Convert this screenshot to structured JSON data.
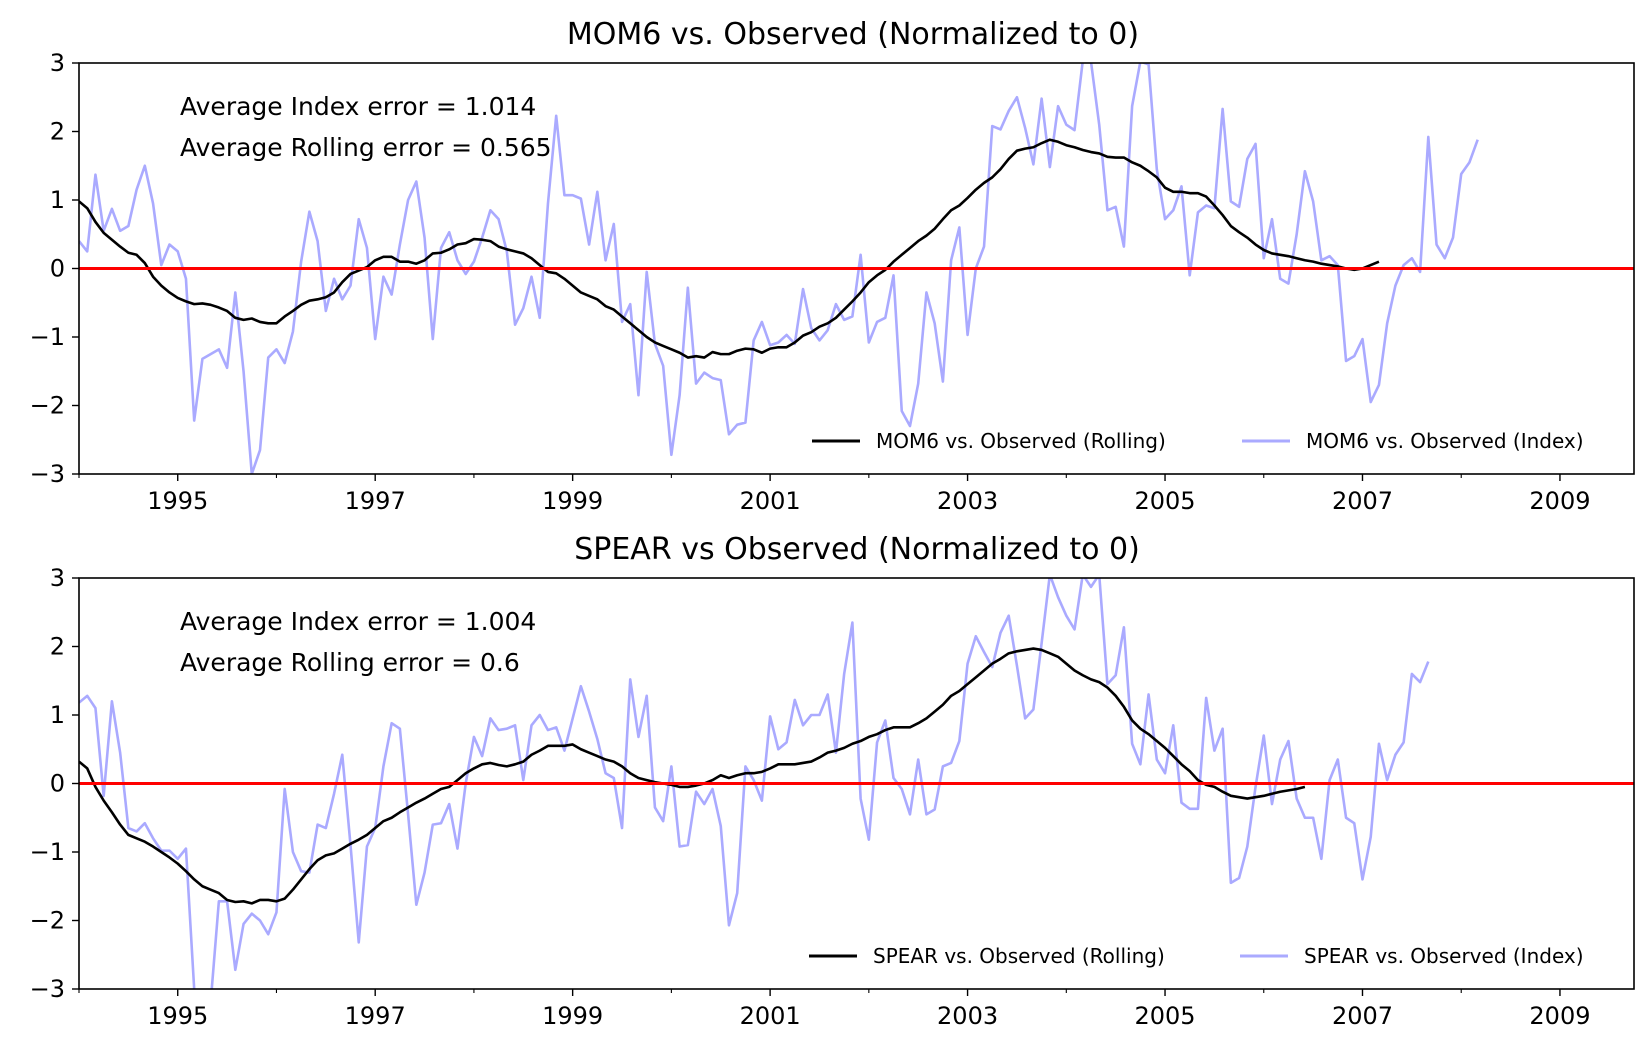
{
  "chart_data": [
    {
      "type": "line",
      "title": "MOM6 vs. Observed (Normalized to 0)",
      "xlabel": "",
      "ylabel": "",
      "xlim": [
        1994.0,
        2009.75
      ],
      "ylim": [
        -3,
        3
      ],
      "x_ticks": [
        1995,
        1997,
        1999,
        2001,
        2003,
        2005,
        2007,
        2009
      ],
      "y_ticks": [
        -3,
        -2,
        -1,
        0,
        1,
        2,
        3
      ],
      "y_tick_labels": [
        "−3",
        "−2",
        "−1",
        "0",
        "1",
        "2",
        "3"
      ],
      "reference_line": {
        "y": 0,
        "color": "#ff0000"
      },
      "annotations": [
        "Average Index error = 1.014",
        "Average Rolling error = 0.565"
      ],
      "legend": {
        "position": "lower right",
        "entries": [
          "MOM6 vs. Observed (Rolling)",
          "MOM6 vs. Observed (Index)"
        ]
      },
      "series": [
        {
          "name": "MOM6 vs. Observed (Rolling)",
          "color": "#000000",
          "x_start": 1994.0,
          "x_step": 0.0833333,
          "values": [
            0.98,
            0.88,
            0.68,
            0.52,
            0.42,
            0.32,
            0.23,
            0.2,
            0.08,
            -0.12,
            -0.25,
            -0.35,
            -0.43,
            -0.48,
            -0.52,
            -0.51,
            -0.53,
            -0.57,
            -0.62,
            -0.72,
            -0.75,
            -0.73,
            -0.78,
            -0.8,
            -0.8,
            -0.7,
            -0.62,
            -0.53,
            -0.47,
            -0.45,
            -0.42,
            -0.35,
            -0.2,
            -0.08,
            -0.03,
            0.02,
            0.12,
            0.17,
            0.17,
            0.1,
            0.1,
            0.07,
            0.12,
            0.22,
            0.23,
            0.28,
            0.35,
            0.37,
            0.43,
            0.42,
            0.4,
            0.32,
            0.28,
            0.25,
            0.22,
            0.15,
            0.05,
            -0.05,
            -0.07,
            -0.15,
            -0.25,
            -0.35,
            -0.4,
            -0.45,
            -0.55,
            -0.6,
            -0.7,
            -0.8,
            -0.9,
            -1.0,
            -1.08,
            -1.13,
            -1.18,
            -1.23,
            -1.3,
            -1.28,
            -1.3,
            -1.22,
            -1.25,
            -1.25,
            -1.2,
            -1.17,
            -1.18,
            -1.23,
            -1.17,
            -1.15,
            -1.15,
            -1.08,
            -0.98,
            -0.93,
            -0.85,
            -0.8,
            -0.72,
            -0.6,
            -0.48,
            -0.35,
            -0.2,
            -0.1,
            -0.02,
            0.1,
            0.2,
            0.3,
            0.4,
            0.48,
            0.58,
            0.72,
            0.85,
            0.92,
            1.03,
            1.15,
            1.25,
            1.33,
            1.45,
            1.6,
            1.72,
            1.75,
            1.77,
            1.83,
            1.88,
            1.85,
            1.8,
            1.77,
            1.73,
            1.7,
            1.68,
            1.63,
            1.62,
            1.62,
            1.55,
            1.5,
            1.42,
            1.33,
            1.18,
            1.12,
            1.12,
            1.1,
            1.1,
            1.05,
            0.92,
            0.78,
            0.62,
            0.53,
            0.45,
            0.35,
            0.27,
            0.22,
            0.2,
            0.18,
            0.15,
            0.12,
            0.1,
            0.07,
            0.05,
            0.03,
            0.0,
            -0.02,
            0.0,
            0.05,
            0.1
          ]
        },
        {
          "name": "MOM6 vs. Observed (Index)",
          "color": "#aaaaff",
          "x_start": 1994.0,
          "x_step": 0.0833333,
          "values": [
            0.4,
            0.25,
            1.37,
            0.55,
            0.87,
            0.55,
            0.62,
            1.15,
            1.5,
            0.95,
            0.05,
            0.35,
            0.25,
            -0.15,
            -2.22,
            -1.32,
            -1.25,
            -1.18,
            -1.45,
            -0.35,
            -1.5,
            -3.0,
            -2.65,
            -1.3,
            -1.18,
            -1.38,
            -0.92,
            0.1,
            0.83,
            0.4,
            -0.62,
            -0.15,
            -0.45,
            -0.25,
            0.72,
            0.3,
            -1.03,
            -0.12,
            -0.38,
            0.35,
            1.0,
            1.27,
            0.45,
            -1.03,
            0.3,
            0.53,
            0.12,
            -0.08,
            0.1,
            0.45,
            0.85,
            0.72,
            0.25,
            -0.82,
            -0.58,
            -0.12,
            -0.72,
            0.95,
            2.23,
            1.07,
            1.07,
            1.02,
            0.35,
            1.12,
            0.12,
            0.65,
            -0.78,
            -0.52,
            -1.85,
            -0.05,
            -1.1,
            -1.42,
            -2.72,
            -1.85,
            -0.28,
            -1.68,
            -1.52,
            -1.6,
            -1.63,
            -2.42,
            -2.28,
            -2.25,
            -1.05,
            -0.78,
            -1.12,
            -1.08,
            -0.97,
            -1.1,
            -0.3,
            -0.87,
            -1.05,
            -0.9,
            -0.52,
            -0.75,
            -0.7,
            0.2,
            -1.08,
            -0.78,
            -0.72,
            -0.1,
            -2.08,
            -2.3,
            -1.68,
            -0.35,
            -0.8,
            -1.65,
            0.12,
            0.6,
            -0.97,
            0.0,
            0.32,
            2.08,
            2.03,
            2.3,
            2.5,
            2.05,
            1.52,
            2.48,
            1.48,
            2.37,
            2.1,
            2.02,
            3.03,
            3.02,
            2.1,
            0.85,
            0.9,
            0.32,
            2.37,
            3.02,
            2.98,
            1.45,
            0.72,
            0.85,
            1.2,
            -0.1,
            0.82,
            0.92,
            0.88,
            2.33,
            0.98,
            0.9,
            1.6,
            1.82,
            0.15,
            0.72,
            -0.15,
            -0.22,
            0.5,
            1.42,
            0.98,
            0.12,
            0.18,
            0.05,
            -1.35,
            -1.28,
            -1.03,
            -1.95,
            -1.7,
            -0.8,
            -0.25,
            0.05,
            0.15,
            -0.05,
            1.92,
            0.35,
            0.15,
            0.45,
            1.38,
            1.55,
            1.88
          ]
        }
      ]
    },
    {
      "type": "line",
      "title": "SPEAR vs Observed (Normalized to 0)",
      "xlabel": "",
      "ylabel": "",
      "xlim": [
        1994.0,
        2009.75
      ],
      "ylim": [
        -3,
        3
      ],
      "x_ticks": [
        1995,
        1997,
        1999,
        2001,
        2003,
        2005,
        2007,
        2009
      ],
      "y_ticks": [
        -3,
        -2,
        -1,
        0,
        1,
        2,
        3
      ],
      "y_tick_labels": [
        "−3",
        "−2",
        "−1",
        "0",
        "1",
        "2",
        "3"
      ],
      "reference_line": {
        "y": 0,
        "color": "#ff0000"
      },
      "annotations": [
        "Average Index error = 1.004",
        "Average Rolling error = 0.6"
      ],
      "legend": {
        "position": "lower right",
        "entries": [
          "SPEAR vs. Observed (Rolling)",
          "SPEAR vs. Observed (Index)"
        ]
      },
      "series": [
        {
          "name": "SPEAR vs. Observed (Rolling)",
          "color": "#000000",
          "x_start": 1994.0,
          "x_step": 0.0833333,
          "values": [
            0.32,
            0.22,
            -0.05,
            -0.25,
            -0.42,
            -0.6,
            -0.75,
            -0.8,
            -0.85,
            -0.92,
            -1.0,
            -1.08,
            -1.17,
            -1.28,
            -1.4,
            -1.5,
            -1.55,
            -1.6,
            -1.7,
            -1.73,
            -1.72,
            -1.75,
            -1.7,
            -1.7,
            -1.72,
            -1.68,
            -1.55,
            -1.4,
            -1.25,
            -1.12,
            -1.05,
            -1.02,
            -0.95,
            -0.88,
            -0.82,
            -0.75,
            -0.65,
            -0.55,
            -0.5,
            -0.42,
            -0.35,
            -0.28,
            -0.22,
            -0.15,
            -0.08,
            -0.05,
            0.05,
            0.15,
            0.22,
            0.28,
            0.3,
            0.27,
            0.25,
            0.28,
            0.32,
            0.42,
            0.48,
            0.55,
            0.55,
            0.55,
            0.57,
            0.5,
            0.45,
            0.4,
            0.35,
            0.32,
            0.25,
            0.15,
            0.08,
            0.05,
            0.02,
            0.0,
            -0.02,
            -0.05,
            -0.05,
            -0.03,
            0.0,
            0.05,
            0.12,
            0.08,
            0.12,
            0.15,
            0.15,
            0.17,
            0.22,
            0.28,
            0.28,
            0.28,
            0.3,
            0.32,
            0.38,
            0.45,
            0.48,
            0.52,
            0.58,
            0.62,
            0.68,
            0.72,
            0.78,
            0.82,
            0.82,
            0.82,
            0.88,
            0.95,
            1.05,
            1.15,
            1.28,
            1.35,
            1.45,
            1.55,
            1.65,
            1.75,
            1.82,
            1.9,
            1.93,
            1.95,
            1.97,
            1.95,
            1.9,
            1.85,
            1.75,
            1.65,
            1.58,
            1.52,
            1.48,
            1.4,
            1.28,
            1.12,
            0.92,
            0.8,
            0.72,
            0.62,
            0.52,
            0.4,
            0.28,
            0.18,
            0.05,
            -0.02,
            -0.05,
            -0.12,
            -0.18,
            -0.2,
            -0.22,
            -0.2,
            -0.18,
            -0.15,
            -0.12,
            -0.1,
            -0.08,
            -0.05
          ]
        },
        {
          "name": "SPEAR vs. Observed (Index)",
          "color": "#aaaaff",
          "x_start": 1994.0,
          "x_step": 0.0833333,
          "values": [
            1.18,
            1.28,
            1.1,
            -0.18,
            1.2,
            0.45,
            -0.65,
            -0.7,
            -0.58,
            -0.8,
            -0.98,
            -0.98,
            -1.1,
            -0.95,
            -3.0,
            -3.4,
            -3.2,
            -1.72,
            -1.72,
            -2.72,
            -2.05,
            -1.9,
            -2.0,
            -2.2,
            -1.88,
            -0.08,
            -1.0,
            -1.28,
            -1.3,
            -0.6,
            -0.65,
            -0.15,
            0.42,
            -0.9,
            -2.32,
            -0.92,
            -0.65,
            0.25,
            0.88,
            0.8,
            -0.45,
            -1.77,
            -1.3,
            -0.6,
            -0.58,
            -0.3,
            -0.95,
            0.0,
            0.68,
            0.4,
            0.95,
            0.78,
            0.8,
            0.85,
            0.05,
            0.85,
            1.0,
            0.78,
            0.82,
            0.48,
            0.95,
            1.42,
            1.05,
            0.65,
            0.15,
            0.08,
            -0.65,
            1.52,
            0.68,
            1.28,
            -0.35,
            -0.55,
            0.25,
            -0.92,
            -0.9,
            -0.12,
            -0.3,
            -0.08,
            -0.62,
            -2.07,
            -1.6,
            0.25,
            0.05,
            -0.25,
            0.98,
            0.5,
            0.6,
            1.22,
            0.85,
            1.0,
            1.0,
            1.3,
            0.45,
            1.6,
            2.35,
            -0.22,
            -0.82,
            0.6,
            0.92,
            0.08,
            -0.08,
            -0.45,
            0.35,
            -0.45,
            -0.38,
            0.25,
            0.3,
            0.62,
            1.75,
            2.15,
            1.92,
            1.7,
            2.2,
            2.45,
            1.72,
            0.95,
            1.08,
            2.05,
            3.05,
            2.72,
            2.45,
            2.25,
            3.05,
            2.87,
            3.05,
            1.45,
            1.58,
            2.28,
            0.58,
            0.28,
            1.3,
            0.35,
            0.15,
            0.85,
            -0.28,
            -0.37,
            -0.37,
            1.25,
            0.48,
            0.8,
            -1.45,
            -1.38,
            -0.92,
            -0.05,
            0.7,
            -0.3,
            0.35,
            0.62,
            -0.22,
            -0.5,
            -0.5,
            -1.1,
            0.05,
            0.35,
            -0.5,
            -0.58,
            -1.4,
            -0.78,
            0.58,
            0.05,
            0.42,
            0.6,
            1.6,
            1.48,
            1.78
          ]
        }
      ]
    }
  ]
}
